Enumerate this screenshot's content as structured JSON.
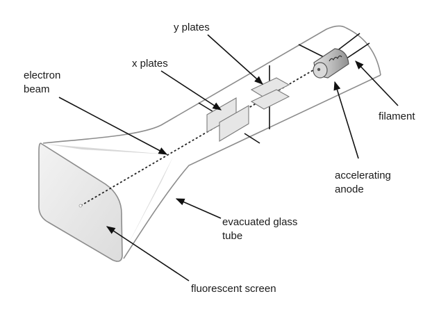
{
  "labels": {
    "y_plates": "y plates",
    "x_plates": "x plates",
    "electron_beam_line1": "electron",
    "electron_beam_line2": "beam",
    "filament": "filament",
    "accelerating_anode_line1": "accelerating",
    "accelerating_anode_line2": "anode",
    "evacuated_glass_tube_line1": "evacuated glass",
    "evacuated_glass_tube_line2": "tube",
    "fluorescent_screen": "fluorescent screen"
  },
  "colors": {
    "glass": "#8c8c8c",
    "screen_fill": "#e9e9e9",
    "plate_fill": "#e6e6e6",
    "anode_fill": "#c9c9c9",
    "text": "#1a1a1a"
  }
}
